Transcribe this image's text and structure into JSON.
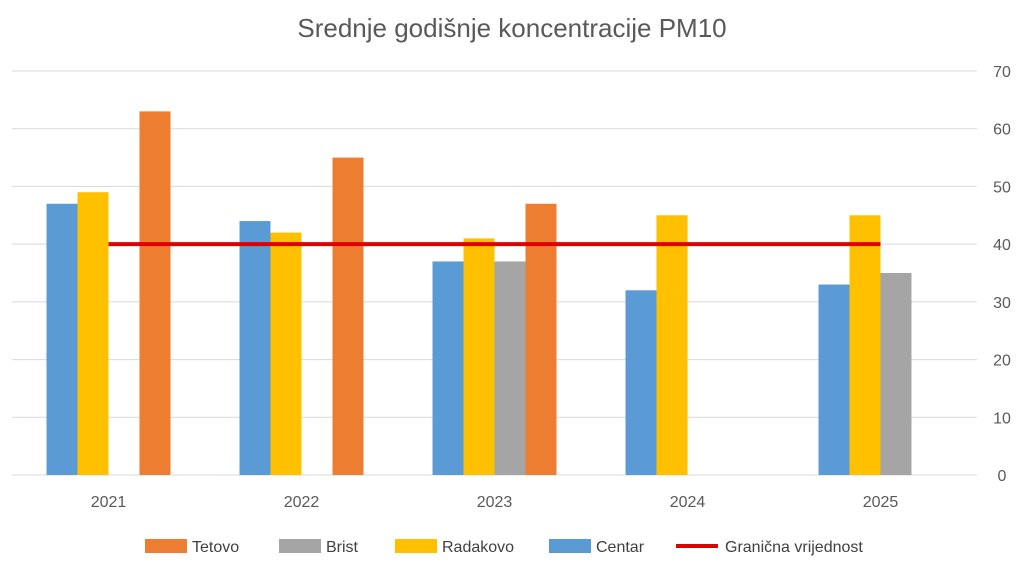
{
  "chart_data": {
    "type": "bar",
    "title": "Srednje godišnje koncentracije PM10",
    "categories": [
      "2021",
      "2022",
      "2023",
      "2024",
      "2025"
    ],
    "series": [
      {
        "name": "Centar",
        "color": "#5b9bd5",
        "values": [
          47,
          44,
          37,
          32,
          33
        ]
      },
      {
        "name": "Radakovo",
        "color": "#ffc000",
        "values": [
          49,
          42,
          41,
          45,
          45
        ]
      },
      {
        "name": "Brist",
        "color": "#a5a5a5",
        "values": [
          null,
          null,
          37,
          null,
          35
        ]
      },
      {
        "name": "Tetovo",
        "color": "#ed7d31",
        "values": [
          63,
          55,
          47,
          null,
          null
        ]
      }
    ],
    "limit_line": {
      "name": "Granična vrijednost",
      "value": 40,
      "color": "#e00000"
    },
    "ylim": [
      0,
      70
    ],
    "yticks": [
      0,
      10,
      20,
      30,
      40,
      50,
      60,
      70
    ],
    "y_axis_side": "right",
    "grid": true,
    "legend": {
      "position": "bottom",
      "order": [
        "Tetovo",
        "Brist",
        "Radakovo",
        "Centar",
        "Granična vrijednost"
      ]
    }
  }
}
